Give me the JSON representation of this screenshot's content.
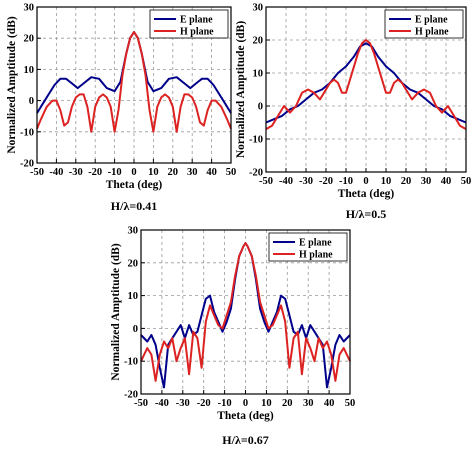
{
  "chart_data": [
    {
      "type": "line",
      "caption": "H/λ=0.41",
      "xlabel": "Theta (deg)",
      "ylabel": "Normalized Amptitude (dB)",
      "xlim": [
        -50,
        50
      ],
      "ylim": [
        -20,
        30
      ],
      "xticks": [
        -50,
        -40,
        -30,
        -20,
        -10,
        0,
        10,
        20,
        30,
        40,
        50
      ],
      "yticks": [
        -20,
        -10,
        0,
        10,
        20,
        30
      ],
      "grid": true,
      "legend_position": "top-right",
      "series": [
        {
          "name": "E plane",
          "color": "#00008b",
          "x": [
            -50,
            -47,
            -44,
            -41,
            -38,
            -35,
            -32,
            -29,
            -26,
            -22,
            -18,
            -14,
            -10,
            -7,
            -4,
            -2,
            0,
            2,
            4,
            7,
            10,
            14,
            18,
            22,
            26,
            29,
            32,
            35,
            38,
            41,
            44,
            47,
            50
          ],
          "y": [
            -4,
            -1,
            2,
            5,
            7,
            7,
            5.5,
            4,
            5.5,
            7.5,
            7,
            4,
            3,
            6,
            15,
            20,
            22,
            20,
            15,
            6,
            3,
            4,
            7,
            7.5,
            5.5,
            4,
            5.5,
            7,
            7,
            5,
            2,
            -1,
            -4
          ]
        },
        {
          "name": "H plane",
          "color": "#dd2222",
          "x": [
            -50,
            -48,
            -45,
            -42,
            -40,
            -38,
            -36,
            -34,
            -32,
            -30,
            -28,
            -26,
            -24,
            -22,
            -20,
            -18,
            -16,
            -14,
            -12,
            -10,
            -8,
            -6,
            -4,
            -2,
            0,
            2,
            4,
            6,
            8,
            10,
            12,
            14,
            16,
            18,
            20,
            22,
            24,
            26,
            28,
            30,
            32,
            34,
            36,
            38,
            40,
            42,
            45,
            48,
            50
          ],
          "y": [
            -9,
            -6,
            -2,
            0,
            0,
            -3,
            -8,
            -7,
            -2,
            1,
            2,
            2,
            -2,
            -10,
            -2,
            1,
            2,
            1,
            -2,
            -10,
            -3,
            8,
            15,
            20,
            22,
            20,
            15,
            8,
            -3,
            -10,
            -2,
            1,
            2,
            1,
            -2,
            -10,
            -2,
            2,
            2,
            1,
            -2,
            -7,
            -8,
            -3,
            0,
            0,
            -2,
            -6,
            -9
          ]
        }
      ]
    },
    {
      "type": "line",
      "caption": "H/λ=0.5",
      "xlabel": "Theta (deg)",
      "ylabel": "Normalized Amptitude (dB)",
      "xlim": [
        -50,
        50
      ],
      "ylim": [
        -20,
        30
      ],
      "xticks": [
        -50,
        -40,
        -30,
        -20,
        -10,
        0,
        10,
        20,
        30,
        40,
        50
      ],
      "yticks": [
        -20,
        -10,
        0,
        10,
        20,
        30
      ],
      "grid": true,
      "legend_position": "top-right",
      "series": [
        {
          "name": "E plane",
          "color": "#00008b",
          "x": [
            -50,
            -46,
            -42,
            -38,
            -34,
            -30,
            -26,
            -22,
            -18,
            -14,
            -10,
            -6,
            -3,
            0,
            3,
            6,
            10,
            14,
            18,
            22,
            26,
            30,
            34,
            38,
            42,
            46,
            50
          ],
          "y": [
            -5,
            -4,
            -3,
            -1,
            0,
            2,
            4,
            5,
            7,
            10,
            12,
            15,
            18,
            19,
            18,
            15,
            12,
            10,
            7,
            5,
            4,
            2,
            0,
            -1,
            -3,
            -4,
            -5
          ]
        },
        {
          "name": "H plane",
          "color": "#dd2222",
          "x": [
            -50,
            -47,
            -44,
            -41,
            -38,
            -35,
            -32,
            -29,
            -26,
            -23,
            -20,
            -18,
            -16,
            -14,
            -12,
            -10,
            -8,
            -6,
            -4,
            -2,
            0,
            2,
            4,
            6,
            8,
            10,
            12,
            14,
            16,
            18,
            20,
            23,
            26,
            29,
            32,
            35,
            38,
            41,
            44,
            47,
            50
          ],
          "y": [
            -7,
            -6,
            -3,
            0,
            -2,
            0,
            4,
            5,
            4,
            2,
            5,
            7,
            8,
            7,
            4,
            4,
            8,
            12,
            16,
            19,
            20,
            19,
            16,
            12,
            8,
            4,
            4,
            7,
            8,
            7,
            5,
            2,
            4,
            5,
            4,
            0,
            -2,
            0,
            -3,
            -6,
            -7
          ]
        }
      ]
    },
    {
      "type": "line",
      "caption": "H/λ=0.67",
      "xlabel": "Theta (deg)",
      "ylabel": "Normalized Amptitude (dB)",
      "xlim": [
        -50,
        50
      ],
      "ylim": [
        -20,
        30
      ],
      "xticks": [
        -50,
        -40,
        -30,
        -20,
        -10,
        0,
        10,
        20,
        30,
        40,
        50
      ],
      "yticks": [
        -20,
        -10,
        0,
        10,
        20,
        30
      ],
      "grid": true,
      "legend_position": "top-right",
      "series": [
        {
          "name": "E plane",
          "color": "#00008b",
          "x": [
            -50,
            -47,
            -45,
            -43,
            -41,
            -39,
            -37,
            -35,
            -33,
            -31,
            -29,
            -27,
            -25,
            -23,
            -21,
            -19,
            -17,
            -15,
            -13,
            -11,
            -9,
            -7,
            -5,
            -3,
            -1,
            0,
            1,
            3,
            5,
            7,
            9,
            11,
            13,
            15,
            17,
            19,
            21,
            23,
            25,
            27,
            29,
            31,
            33,
            35,
            37,
            39,
            41,
            43,
            45,
            47,
            50
          ],
          "y": [
            -2,
            -4,
            -2,
            -5,
            -12,
            -18,
            -5,
            -3,
            -1,
            1,
            -3,
            1,
            -2,
            -1,
            4,
            9,
            10,
            5,
            2,
            -1,
            2,
            6,
            15,
            22,
            25,
            26,
            25,
            22,
            15,
            6,
            2,
            -1,
            2,
            5,
            10,
            9,
            4,
            -1,
            -2,
            1,
            -3,
            1,
            -1,
            -3,
            -5,
            -18,
            -12,
            -5,
            -2,
            -4,
            -2
          ]
        },
        {
          "name": "H plane",
          "color": "#dd2222",
          "x": [
            -50,
            -47,
            -45,
            -43,
            -41,
            -39,
            -37,
            -35,
            -33,
            -31,
            -29,
            -27,
            -25,
            -23,
            -21,
            -19,
            -17,
            -15,
            -13,
            -11,
            -9,
            -7,
            -5,
            -3,
            -1,
            0,
            1,
            3,
            5,
            7,
            9,
            11,
            13,
            15,
            17,
            19,
            21,
            23,
            25,
            27,
            29,
            31,
            33,
            35,
            37,
            39,
            41,
            43,
            45,
            47,
            50
          ],
          "y": [
            -10,
            -6,
            -8,
            -16,
            -8,
            -4,
            -6,
            -3,
            -10,
            -6,
            -3,
            -14,
            -1,
            -3,
            -12,
            2,
            7,
            4,
            1,
            0,
            4,
            8,
            16,
            22,
            25,
            26,
            25,
            22,
            16,
            8,
            4,
            0,
            1,
            4,
            7,
            2,
            -12,
            -3,
            -1,
            -14,
            -3,
            -6,
            -10,
            -3,
            -6,
            -4,
            -8,
            -16,
            -8,
            -6,
            -10
          ]
        }
      ]
    }
  ]
}
